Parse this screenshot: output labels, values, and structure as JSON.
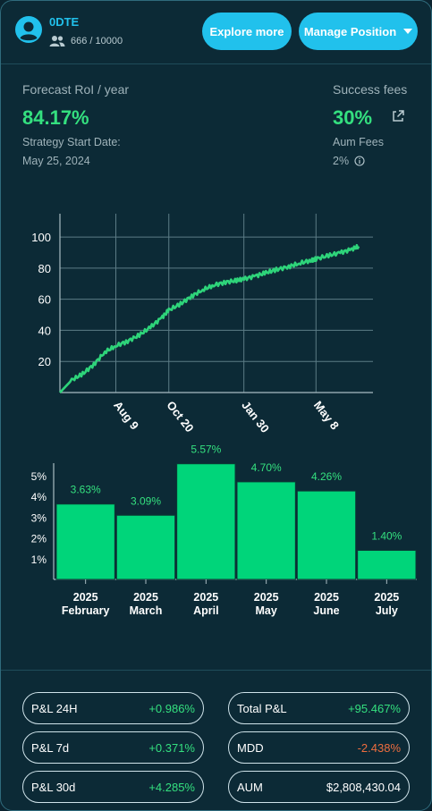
{
  "header": {
    "strategy_name": "0DTE",
    "users": "666 / 10000",
    "explore_label": "Explore more",
    "manage_label": "Manage Position"
  },
  "stats": {
    "forecast_label": "Forecast RoI / year",
    "forecast_value": "84.17%",
    "start_label": "Strategy Start Date:",
    "start_date": "May 25, 2024",
    "success_label": "Success fees",
    "success_value": "30%",
    "aum_label": "Aum Fees",
    "aum_value": "2%"
  },
  "chart_data": [
    {
      "type": "line",
      "x_ticks": [
        "Aug 9",
        "Oct 20",
        "Jan 30",
        "May 8"
      ],
      "y_ticks": [
        20,
        40,
        60,
        80,
        100
      ],
      "ylim": [
        0,
        115
      ],
      "grid": true,
      "color": "#2ed47a",
      "series": [
        {
          "x": [
            "2024-05-25",
            "2024-06-10",
            "2024-06-25",
            "2024-07-10",
            "2024-07-25",
            "2024-08-09",
            "2024-08-25",
            "2024-09-10",
            "2024-09-25",
            "2024-10-10",
            "2024-10-20",
            "2024-11-05",
            "2024-11-20",
            "2024-12-05",
            "2024-12-20",
            "2025-01-05",
            "2025-01-20",
            "2025-01-30",
            "2025-02-15",
            "2025-03-01",
            "2025-03-15",
            "2025-04-01",
            "2025-04-15",
            "2025-05-01",
            "2025-05-08",
            "2025-05-25",
            "2025-06-10",
            "2025-06-25",
            "2025-07-05"
          ],
          "y": [
            0,
            8,
            12,
            18,
            26,
            30,
            33,
            37,
            42,
            48,
            53,
            57,
            62,
            66,
            69,
            71,
            72,
            73,
            75,
            77,
            79,
            81,
            83,
            85,
            86,
            88,
            90,
            92,
            94
          ]
        }
      ]
    },
    {
      "type": "bar",
      "categories": [
        [
          "2025",
          "February"
        ],
        [
          "2025",
          "March"
        ],
        [
          "2025",
          "April"
        ],
        [
          "2025",
          "May"
        ],
        [
          "2025",
          "June"
        ],
        [
          "2025",
          "July"
        ]
      ],
      "values": [
        3.63,
        3.09,
        5.57,
        4.7,
        4.26,
        1.4
      ],
      "labels": [
        "3.63%",
        "3.09%",
        "5.57%",
        "4.70%",
        "4.26%",
        "1.40%"
      ],
      "y_ticks": [
        "1%",
        "2%",
        "3%",
        "4%",
        "5%"
      ],
      "ylim": [
        0,
        5.6
      ],
      "color": "#00d57a"
    }
  ],
  "metrics": [
    {
      "label": "P&L 24H",
      "value": "+0.986%",
      "tone": "pos"
    },
    {
      "label": "Total P&L",
      "value": "+95.467%",
      "tone": "pos"
    },
    {
      "label": "P&L 7d",
      "value": "+0.371%",
      "tone": "pos"
    },
    {
      "label": "MDD",
      "value": "-2.438%",
      "tone": "neg"
    },
    {
      "label": "P&L 30d",
      "value": "+4.285%",
      "tone": "pos"
    },
    {
      "label": "AUM",
      "value": "$2,808,430.04",
      "tone": "neu"
    }
  ]
}
